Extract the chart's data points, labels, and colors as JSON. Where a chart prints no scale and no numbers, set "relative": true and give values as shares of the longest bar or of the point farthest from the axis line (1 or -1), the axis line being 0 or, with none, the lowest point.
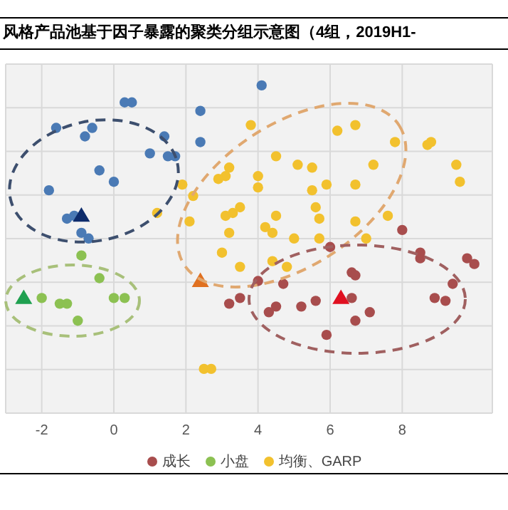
{
  "chart_data": {
    "type": "scatter",
    "title": "风格产品池基于因子暴露的聚类分组示意图（4组，2019H1-",
    "relative": true,
    "xlim": [
      -3,
      10.5
    ],
    "xticks": [
      -2,
      0,
      2,
      4,
      6,
      8
    ],
    "grid": true,
    "legend": "bottom",
    "series": [
      {
        "color": "#4a7ab5",
        "marker": "circle",
        "x": [
          4.1,
          0.3,
          0.5,
          2.4,
          -1.6,
          -0.6,
          -0.8,
          1.4,
          2.4,
          1.0,
          1.5,
          1.7,
          -0.4,
          0.0,
          -1.8,
          -1.3,
          -1.1,
          -0.9,
          -0.7
        ],
        "values": [
          1.0,
          0.94,
          0.94,
          0.91,
          0.85,
          0.85,
          0.82,
          0.82,
          0.8,
          0.76,
          0.75,
          0.75,
          0.7,
          0.66,
          0.63,
          0.53,
          0.54,
          0.48,
          0.46
        ]
      },
      {
        "name": "成长",
        "color": "#a84d4d",
        "marker": "circle",
        "x": [
          8.0,
          6.0,
          8.5,
          8.5,
          9.8,
          10.0,
          6.6,
          6.7,
          4.0,
          4.7,
          9.4,
          5.6,
          6.6,
          8.9,
          9.2,
          4.5,
          5.2,
          4.3,
          7.1,
          6.7,
          5.9,
          3.2,
          3.5
        ],
        "values": [
          0.49,
          0.43,
          0.39,
          0.41,
          0.39,
          0.37,
          0.34,
          0.33,
          0.31,
          0.3,
          0.3,
          0.24,
          0.25,
          0.25,
          0.24,
          0.22,
          0.22,
          0.2,
          0.2,
          0.17,
          0.12,
          0.23,
          0.25
        ]
      },
      {
        "name": "小盘",
        "color": "#8cc152",
        "marker": "circle",
        "x": [
          -0.9,
          -0.4,
          -2.0,
          -1.5,
          -1.3,
          0.0,
          0.3,
          -1.0
        ],
        "values": [
          0.4,
          0.32,
          0.25,
          0.23,
          0.23,
          0.25,
          0.25,
          0.17
        ]
      },
      {
        "name": "均衡、GARP",
        "color": "#f2c12e",
        "marker": "circle",
        "x": [
          3.8,
          6.2,
          6.7,
          7.8,
          8.7,
          8.8,
          4.5,
          5.1,
          5.5,
          7.2,
          9.5,
          3.2,
          3.1,
          2.9,
          1.9,
          2.2,
          1.2,
          2.1,
          3.1,
          3.3,
          3.5,
          3.2,
          3.0,
          3.5,
          2.5,
          2.7,
          4.0,
          4.0,
          5.5,
          5.9,
          6.7,
          9.6,
          5.6,
          4.5,
          5.7,
          4.2,
          4.4,
          5.0,
          5.7,
          6.7,
          7.6,
          7.0,
          4.4,
          4.8
        ],
        "values": [
          0.86,
          0.84,
          0.86,
          0.8,
          0.79,
          0.8,
          0.75,
          0.72,
          0.71,
          0.72,
          0.72,
          0.71,
          0.68,
          0.67,
          0.65,
          0.61,
          0.55,
          0.52,
          0.54,
          0.55,
          0.57,
          0.48,
          0.41,
          0.36,
          0.0,
          0.0,
          0.68,
          0.64,
          0.63,
          0.65,
          0.65,
          0.66,
          0.57,
          0.54,
          0.53,
          0.5,
          0.48,
          0.46,
          0.46,
          0.52,
          0.54,
          0.46,
          0.38,
          0.36
        ]
      },
      {
        "color": "#0d2b6b",
        "marker": "triangle",
        "x": [
          -0.9
        ],
        "values": [
          0.54
        ]
      },
      {
        "color": "#1fa050",
        "marker": "triangle",
        "x": [
          -2.5
        ],
        "values": [
          0.25
        ]
      },
      {
        "color": "#e07020",
        "marker": "triangle",
        "x": [
          2.4
        ],
        "values": [
          0.31
        ]
      },
      {
        "color": "#e01020",
        "marker": "triangle",
        "x": [
          6.3
        ],
        "values": [
          0.25
        ]
      }
    ]
  }
}
